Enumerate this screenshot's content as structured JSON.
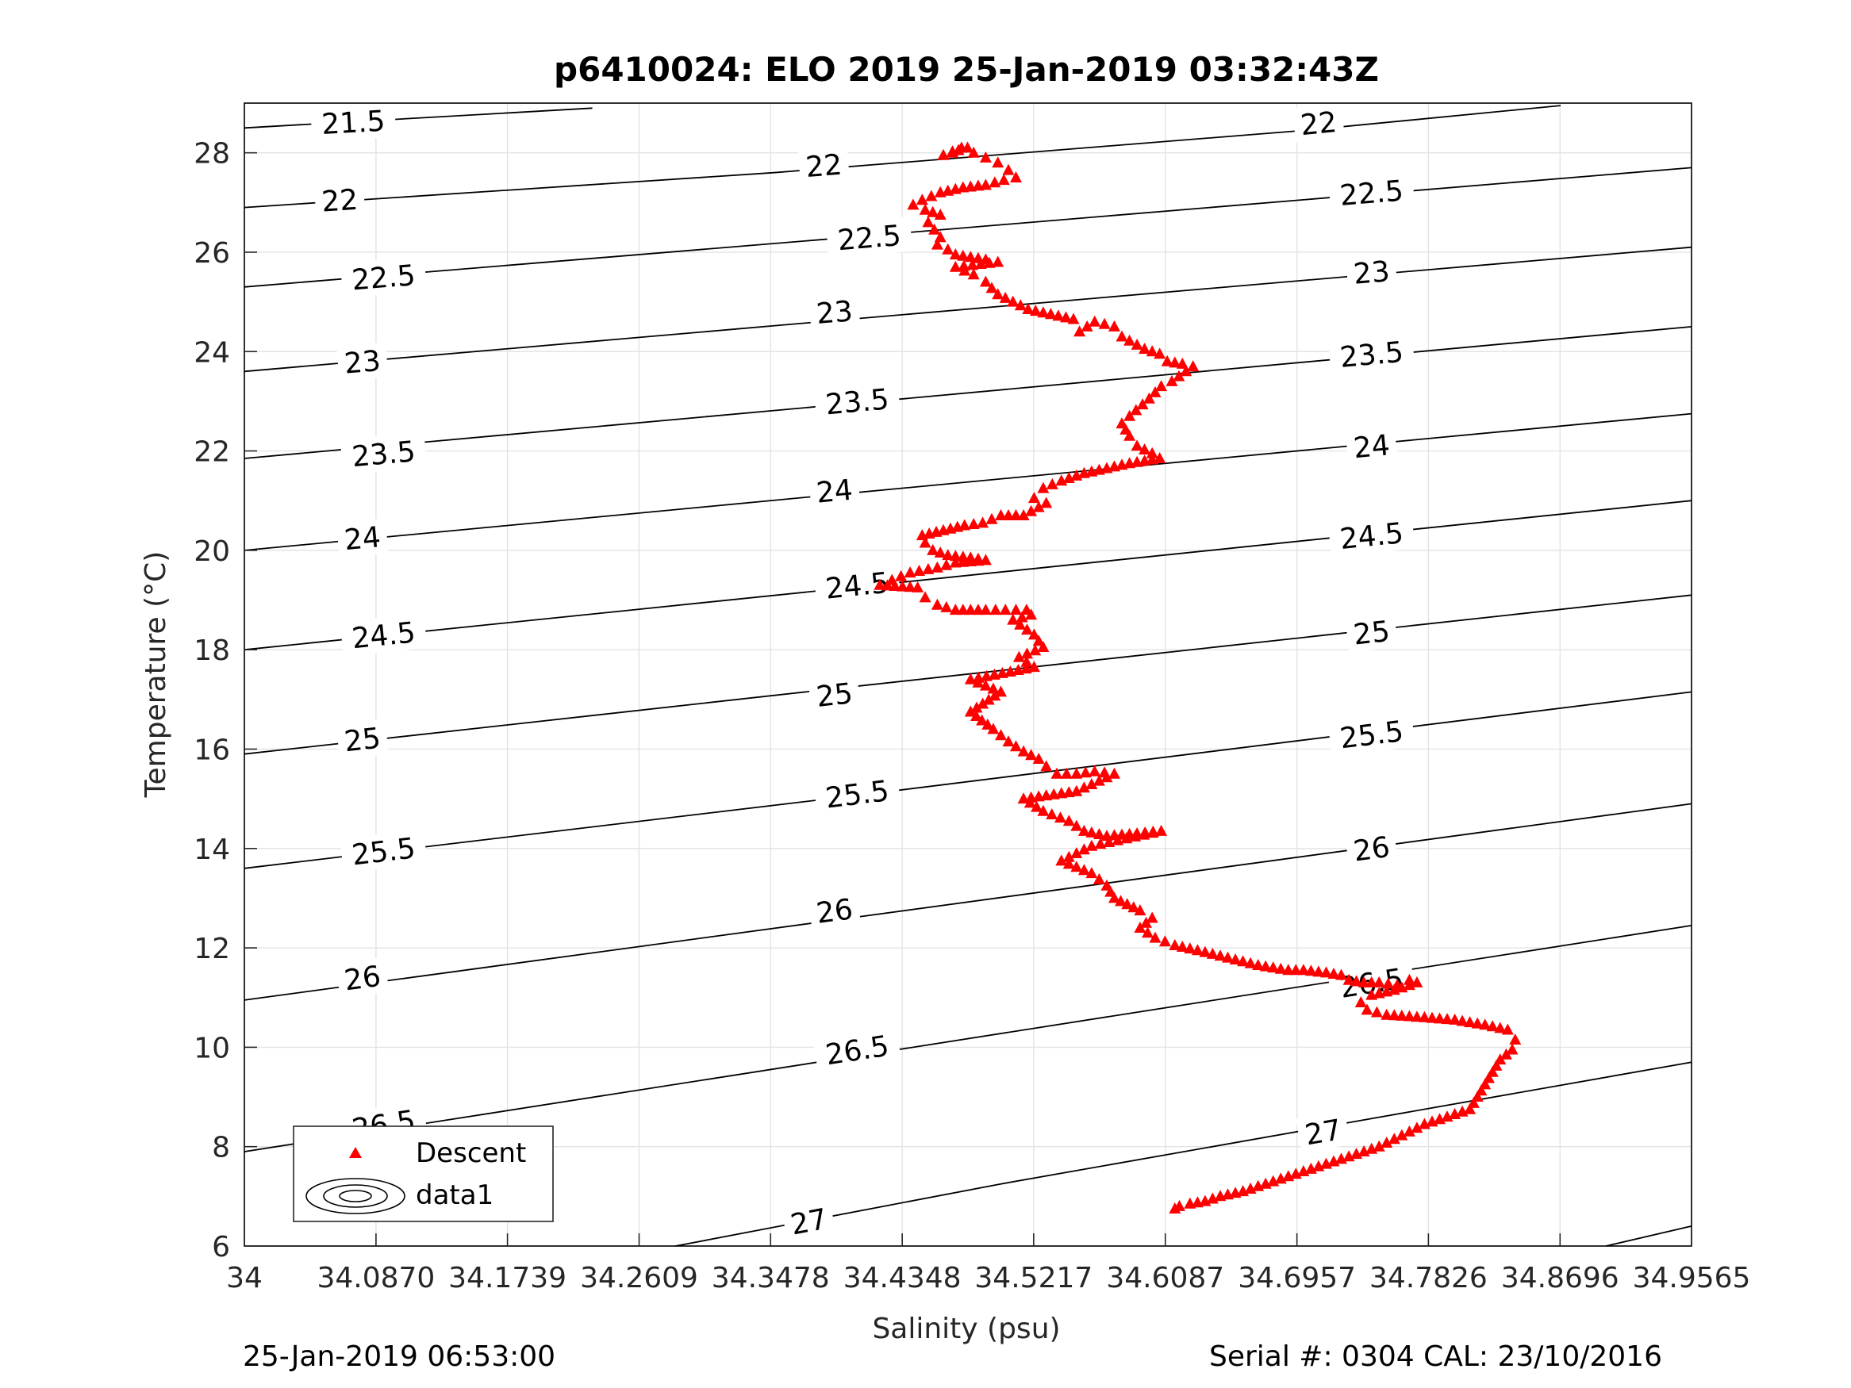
{
  "chart_data": {
    "type": "scatter",
    "title": "p6410024: ELO 2019 25-Jan-2019 03:32:43Z",
    "xlabel": "Salinity (psu)",
    "ylabel": "Temperature (°C)",
    "xlim": [
      34,
      34.9565
    ],
    "ylim": [
      6,
      29
    ],
    "xticks": [
      "34",
      "34.0870",
      "34.1739",
      "34.2609",
      "34.3478",
      "34.4348",
      "34.5217",
      "34.6087",
      "34.6957",
      "34.7826",
      "34.8696",
      "34.9565"
    ],
    "yticks": [
      "6",
      "8",
      "10",
      "12",
      "14",
      "16",
      "18",
      "20",
      "22",
      "24",
      "26",
      "28"
    ],
    "grid": true,
    "legend": {
      "placement": "bottom-left",
      "entries": [
        "Descent",
        "data1"
      ]
    },
    "colors": {
      "descent": "#ff0000",
      "contour": "#000000",
      "grid": "#e3e3e3"
    },
    "series": [
      {
        "name": "Descent",
        "marker": "triangle",
        "color": "#ff0000",
        "points": [
          [
            34.478,
            28.1
          ],
          [
            34.472,
            28.05
          ],
          [
            34.468,
            28.0
          ],
          [
            34.462,
            27.95
          ],
          [
            34.474,
            28.1
          ],
          [
            34.482,
            28.0
          ],
          [
            34.49,
            27.9
          ],
          [
            34.498,
            27.8
          ],
          [
            34.505,
            27.65
          ],
          [
            34.51,
            27.5
          ],
          [
            34.502,
            27.45
          ],
          [
            34.49,
            27.35
          ],
          [
            34.475,
            27.3
          ],
          [
            34.46,
            27.2
          ],
          [
            34.448,
            27.05
          ],
          [
            34.442,
            26.95
          ],
          [
            34.45,
            26.85
          ],
          [
            34.46,
            26.75
          ],
          [
            34.452,
            26.6
          ],
          [
            34.456,
            26.45
          ],
          [
            34.46,
            26.3
          ],
          [
            34.458,
            26.15
          ],
          [
            34.465,
            26.05
          ],
          [
            34.47,
            25.95
          ],
          [
            34.48,
            25.9
          ],
          [
            34.49,
            25.85
          ],
          [
            34.498,
            25.8
          ],
          [
            34.47,
            25.7
          ],
          [
            34.482,
            25.55
          ],
          [
            34.49,
            25.4
          ],
          [
            34.498,
            25.15
          ],
          [
            34.518,
            24.85
          ],
          [
            34.548,
            24.65
          ],
          [
            34.552,
            24.4
          ],
          [
            34.562,
            24.6
          ],
          [
            34.575,
            24.5
          ],
          [
            34.58,
            24.3
          ],
          [
            34.595,
            24.05
          ],
          [
            34.605,
            23.95
          ],
          [
            34.61,
            23.8
          ],
          [
            34.62,
            23.75
          ],
          [
            34.627,
            23.7
          ],
          [
            34.613,
            23.4
          ],
          [
            34.606,
            23.3
          ],
          [
            34.598,
            23.05
          ],
          [
            34.585,
            22.7
          ],
          [
            34.58,
            22.55
          ],
          [
            34.585,
            22.3
          ],
          [
            34.59,
            22.1
          ],
          [
            34.6,
            21.95
          ],
          [
            34.605,
            21.85
          ],
          [
            34.595,
            21.8
          ],
          [
            34.585,
            21.75
          ],
          [
            34.57,
            21.65
          ],
          [
            34.555,
            21.55
          ],
          [
            34.54,
            21.4
          ],
          [
            34.528,
            21.25
          ],
          [
            34.522,
            21.05
          ],
          [
            34.53,
            20.95
          ],
          [
            34.515,
            20.7
          ],
          [
            34.5,
            20.7
          ],
          [
            34.488,
            20.55
          ],
          [
            34.476,
            20.5
          ],
          [
            34.462,
            20.4
          ],
          [
            34.448,
            20.3
          ],
          [
            34.45,
            20.15
          ],
          [
            34.455,
            20.0
          ],
          [
            34.465,
            19.9
          ],
          [
            34.48,
            19.85
          ],
          [
            34.49,
            19.8
          ],
          [
            34.47,
            19.75
          ],
          [
            34.458,
            19.65
          ],
          [
            34.44,
            19.55
          ],
          [
            34.428,
            19.4
          ],
          [
            34.42,
            19.3
          ],
          [
            34.445,
            19.25
          ],
          [
            34.45,
            19.05
          ],
          [
            34.458,
            18.9
          ],
          [
            34.47,
            18.8
          ],
          [
            34.49,
            18.8
          ],
          [
            34.503,
            18.8
          ],
          [
            34.517,
            18.8
          ],
          [
            34.52,
            18.7
          ],
          [
            34.508,
            18.6
          ],
          [
            34.522,
            18.3
          ],
          [
            34.528,
            18.05
          ],
          [
            34.512,
            17.85
          ],
          [
            34.522,
            17.65
          ],
          [
            34.48,
            17.4
          ],
          [
            34.5,
            17.15
          ],
          [
            34.48,
            16.75
          ],
          [
            34.495,
            16.4
          ],
          [
            34.505,
            16.15
          ],
          [
            34.515,
            15.95
          ],
          [
            34.525,
            15.8
          ],
          [
            34.53,
            15.65
          ],
          [
            34.537,
            15.5
          ],
          [
            34.55,
            15.5
          ],
          [
            34.562,
            15.55
          ],
          [
            34.575,
            15.5
          ],
          [
            34.55,
            15.15
          ],
          [
            34.515,
            15.0
          ],
          [
            34.528,
            14.75
          ],
          [
            34.545,
            14.55
          ],
          [
            34.555,
            14.35
          ],
          [
            34.57,
            14.25
          ],
          [
            34.59,
            14.3
          ],
          [
            34.606,
            14.35
          ],
          [
            34.56,
            14.05
          ],
          [
            34.54,
            13.75
          ],
          [
            34.56,
            13.5
          ],
          [
            34.57,
            13.25
          ],
          [
            34.575,
            13.0
          ],
          [
            34.592,
            12.75
          ],
          [
            34.6,
            12.6
          ],
          [
            34.592,
            12.4
          ],
          [
            34.602,
            12.2
          ],
          [
            34.615,
            12.05
          ],
          [
            34.63,
            11.95
          ],
          [
            34.65,
            11.8
          ],
          [
            34.67,
            11.65
          ],
          [
            34.69,
            11.55
          ],
          [
            34.7,
            11.55
          ],
          [
            34.715,
            11.5
          ],
          [
            34.725,
            11.45
          ],
          [
            34.73,
            11.35
          ],
          [
            34.74,
            11.3
          ],
          [
            34.75,
            11.3
          ],
          [
            34.762,
            11.25
          ],
          [
            34.77,
            11.35
          ],
          [
            34.775,
            11.3
          ],
          [
            34.76,
            11.15
          ],
          [
            34.745,
            11.05
          ],
          [
            34.738,
            10.9
          ],
          [
            34.742,
            10.75
          ],
          [
            34.755,
            10.65
          ],
          [
            34.78,
            10.6
          ],
          [
            34.8,
            10.55
          ],
          [
            34.82,
            10.45
          ],
          [
            34.835,
            10.35
          ],
          [
            34.84,
            10.15
          ],
          [
            34.838,
            9.95
          ],
          [
            34.83,
            9.75
          ],
          [
            34.825,
            9.5
          ],
          [
            34.82,
            9.25
          ],
          [
            34.815,
            9.0
          ],
          [
            34.81,
            8.75
          ],
          [
            34.795,
            8.6
          ],
          [
            34.78,
            8.45
          ],
          [
            34.77,
            8.3
          ],
          [
            34.76,
            8.15
          ],
          [
            34.75,
            8.0
          ],
          [
            34.735,
            7.85
          ],
          [
            34.72,
            7.7
          ],
          [
            34.705,
            7.55
          ],
          [
            34.69,
            7.4
          ],
          [
            34.675,
            7.25
          ],
          [
            34.66,
            7.1
          ],
          [
            34.645,
            7.0
          ],
          [
            34.635,
            6.9
          ],
          [
            34.625,
            6.85
          ],
          [
            34.618,
            6.8
          ],
          [
            34.615,
            6.75
          ]
        ]
      }
    ],
    "contours": [
      {
        "sigma": "21.5",
        "points": [
          [
            34.0,
            28.5
          ],
          [
            34.23,
            28.9
          ]
        ],
        "labels": [
          [
            34.072,
            28.62
          ]
        ]
      },
      {
        "sigma": "22",
        "points": [
          [
            34.0,
            26.9
          ],
          [
            34.35,
            27.6
          ],
          [
            34.7,
            28.45
          ],
          [
            34.87,
            28.95
          ]
        ],
        "labels": [
          [
            34.063,
            27.05
          ],
          [
            34.383,
            27.75
          ],
          [
            34.71,
            28.6
          ]
        ]
      },
      {
        "sigma": "22.5",
        "points": [
          [
            34.0,
            25.3
          ],
          [
            34.4,
            26.3
          ],
          [
            34.9565,
            27.7
          ]
        ],
        "labels": [
          [
            34.092,
            25.5
          ],
          [
            34.413,
            26.3
          ],
          [
            34.745,
            27.2
          ]
        ]
      },
      {
        "sigma": "23",
        "points": [
          [
            34.0,
            23.6
          ],
          [
            34.4,
            24.65
          ],
          [
            34.9565,
            26.1
          ]
        ],
        "labels": [
          [
            34.078,
            23.8
          ],
          [
            34.39,
            24.8
          ],
          [
            34.745,
            25.6
          ]
        ]
      },
      {
        "sigma": "23.5",
        "points": [
          [
            34.0,
            21.85
          ],
          [
            34.4,
            22.95
          ],
          [
            34.9565,
            24.5
          ]
        ],
        "labels": [
          [
            34.092,
            21.95
          ],
          [
            34.405,
            23.0
          ],
          [
            34.745,
            23.95
          ]
        ]
      },
      {
        "sigma": "24",
        "points": [
          [
            34.0,
            20.0
          ],
          [
            34.4,
            21.15
          ],
          [
            34.9565,
            22.75
          ]
        ],
        "labels": [
          [
            34.078,
            20.25
          ],
          [
            34.39,
            21.2
          ],
          [
            34.745,
            22.1
          ]
        ]
      },
      {
        "sigma": "24.5",
        "points": [
          [
            34.0,
            18.0
          ],
          [
            34.4,
            19.25
          ],
          [
            34.9565,
            21.0
          ]
        ],
        "labels": [
          [
            34.092,
            18.3
          ],
          [
            34.405,
            19.3
          ],
          [
            34.745,
            20.3
          ]
        ]
      },
      {
        "sigma": "25",
        "points": [
          [
            34.0,
            15.9
          ],
          [
            34.4,
            17.25
          ],
          [
            34.9565,
            19.1
          ]
        ],
        "labels": [
          [
            34.078,
            16.2
          ],
          [
            34.39,
            17.1
          ],
          [
            34.745,
            18.35
          ]
        ]
      },
      {
        "sigma": "25.5",
        "points": [
          [
            34.0,
            13.6
          ],
          [
            34.4,
            15.05
          ],
          [
            34.9565,
            17.15
          ]
        ],
        "labels": [
          [
            34.092,
            13.95
          ],
          [
            34.405,
            15.1
          ],
          [
            34.745,
            16.3
          ]
        ]
      },
      {
        "sigma": "26",
        "points": [
          [
            34.0,
            10.95
          ],
          [
            34.4,
            12.6
          ],
          [
            34.9565,
            14.9
          ]
        ],
        "labels": [
          [
            34.078,
            11.4
          ],
          [
            34.39,
            12.75
          ],
          [
            34.745,
            14.0
          ]
        ]
      },
      {
        "sigma": "26.5",
        "points": [
          [
            34.0,
            7.9
          ],
          [
            34.4,
            9.8
          ],
          [
            34.9565,
            12.45
          ]
        ],
        "labels": [
          [
            34.092,
            8.45
          ],
          [
            34.405,
            9.95
          ],
          [
            34.745,
            11.3
          ]
        ]
      },
      {
        "sigma": "27",
        "points": [
          [
            34.285,
            6.0
          ],
          [
            34.5,
            7.25
          ],
          [
            34.9565,
            9.7
          ]
        ],
        "labels": [
          [
            34.373,
            6.5
          ],
          [
            34.713,
            8.3
          ]
        ]
      },
      {
        "sigma": "",
        "points": [
          [
            34.9,
            6.0
          ],
          [
            34.9565,
            6.4
          ]
        ],
        "labels": []
      }
    ]
  },
  "footer": {
    "left": "25-Jan-2019 06:53:00",
    "right": "Serial #: 0304  CAL: 23/10/2016"
  }
}
